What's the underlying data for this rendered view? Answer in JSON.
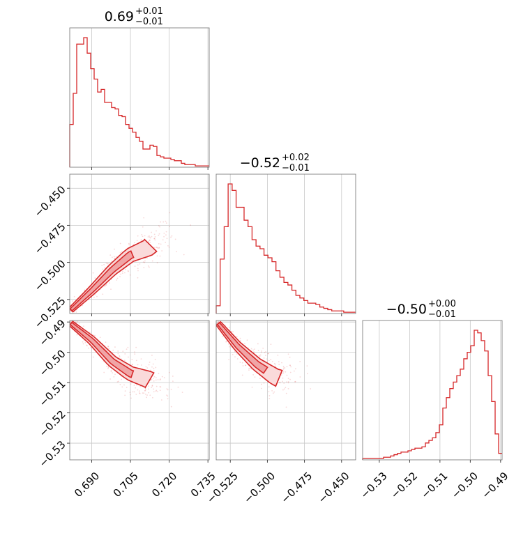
{
  "colors": {
    "series": "#d62728",
    "fill_inner": "#f0a5a6",
    "fill_outer": "#fadada",
    "grid": "#c8c8c8",
    "axes": "#7f7f7f"
  },
  "chart_data": {
    "type": "corner",
    "title": "",
    "grid": true,
    "parameters": [
      {
        "label_main": "0.69",
        "label_sup": "+0.01",
        "label_sub": "−0.01",
        "range": [
          0.6815,
          0.7355
        ],
        "ticks": [
          0.69,
          0.705,
          0.72,
          0.735
        ],
        "tick_labels": [
          "0.690",
          "0.705",
          "0.720",
          "0.735"
        ]
      },
      {
        "label_main": "−0.52",
        "label_sup": "+0.02",
        "label_sub": "−0.01",
        "range": [
          -0.5345,
          -0.4405
        ],
        "ticks": [
          -0.525,
          -0.5,
          -0.475,
          -0.45
        ],
        "tick_labels": [
          "−0.525",
          "−0.500",
          "−0.475",
          "−0.450"
        ]
      },
      {
        "label_main": "−0.50",
        "label_sup": "+0.00",
        "label_sub": "−0.01",
        "range": [
          -0.5355,
          -0.4895
        ],
        "ticks": [
          -0.53,
          -0.52,
          -0.51,
          -0.5,
          -0.49
        ],
        "tick_labels": [
          "−0.53",
          "−0.52",
          "−0.51",
          "−0.50",
          "−0.49"
        ]
      }
    ],
    "histograms": [
      [
        0.33,
        0.57,
        0.95,
        0.95,
        1.0,
        0.88,
        0.76,
        0.68,
        0.58,
        0.6,
        0.5,
        0.5,
        0.46,
        0.45,
        0.4,
        0.39,
        0.33,
        0.3,
        0.27,
        0.23,
        0.2,
        0.14,
        0.14,
        0.17,
        0.16,
        0.09,
        0.08,
        0.07,
        0.07,
        0.06,
        0.05,
        0.05,
        0.03,
        0.02,
        0.02,
        0.02,
        0.01,
        0.01,
        0.01,
        0.01
      ],
      [
        0.06,
        0.42,
        0.67,
        1.0,
        0.95,
        0.82,
        0.82,
        0.72,
        0.67,
        0.57,
        0.52,
        0.5,
        0.45,
        0.43,
        0.4,
        0.33,
        0.28,
        0.24,
        0.22,
        0.18,
        0.14,
        0.12,
        0.1,
        0.08,
        0.08,
        0.07,
        0.05,
        0.04,
        0.03,
        0.02,
        0.02,
        0.02,
        0.01,
        0.01,
        0.01
      ],
      [
        0.01,
        0.01,
        0.01,
        0.01,
        0.01,
        0.01,
        0.02,
        0.02,
        0.03,
        0.04,
        0.05,
        0.06,
        0.06,
        0.07,
        0.08,
        0.09,
        0.09,
        0.1,
        0.13,
        0.15,
        0.17,
        0.21,
        0.27,
        0.4,
        0.48,
        0.55,
        0.6,
        0.65,
        0.7,
        0.78,
        0.83,
        0.88,
        1.0,
        0.98,
        0.92,
        0.84,
        0.65,
        0.45,
        0.2,
        0.05
      ]
    ],
    "panels_2d": [
      {
        "row": 1,
        "col": 0,
        "ridge": [
          [
            0.682,
            -0.532
          ],
          [
            0.69,
            -0.519
          ],
          [
            0.698,
            -0.505
          ],
          [
            0.705,
            -0.495
          ],
          [
            0.712,
            -0.49
          ],
          [
            0.72,
            -0.476
          ]
        ],
        "rho": 0.99
      },
      {
        "row": 2,
        "col": 0,
        "ridge": [
          [
            0.682,
            -0.4905
          ],
          [
            0.69,
            -0.496
          ],
          [
            0.698,
            -0.503
          ],
          [
            0.705,
            -0.507
          ],
          [
            0.712,
            -0.509
          ],
          [
            0.716,
            -0.511
          ]
        ],
        "rho": -0.95
      },
      {
        "row": 2,
        "col": 1,
        "ridge": [
          [
            -0.533,
            -0.4905
          ],
          [
            -0.52,
            -0.498
          ],
          [
            -0.507,
            -0.504
          ],
          [
            -0.495,
            -0.508
          ],
          [
            -0.485,
            -0.51
          ]
        ],
        "rho": -0.95
      }
    ]
  }
}
